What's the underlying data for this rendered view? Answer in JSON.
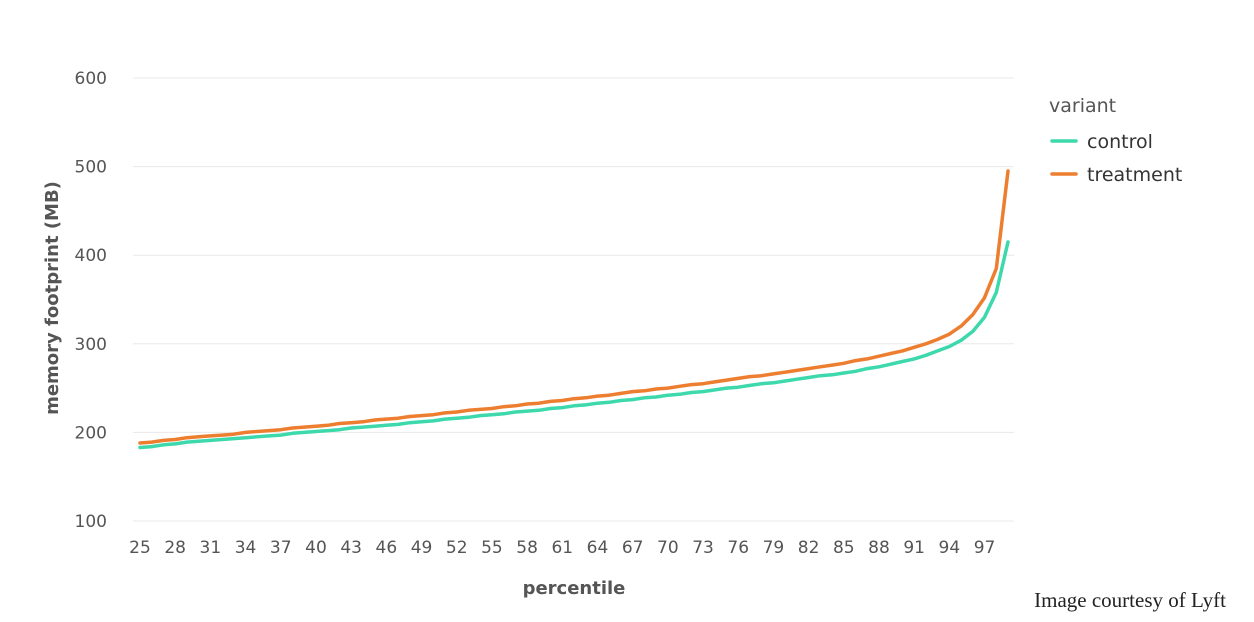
{
  "chart_data": {
    "type": "line",
    "title": "",
    "xlabel": "percentile",
    "ylabel": "memory footprint (MB)",
    "x": [
      25,
      26,
      27,
      28,
      29,
      30,
      31,
      32,
      33,
      34,
      35,
      36,
      37,
      38,
      39,
      40,
      41,
      42,
      43,
      44,
      45,
      46,
      47,
      48,
      49,
      50,
      51,
      52,
      53,
      54,
      55,
      56,
      57,
      58,
      59,
      60,
      61,
      62,
      63,
      64,
      65,
      66,
      67,
      68,
      69,
      70,
      71,
      72,
      73,
      74,
      75,
      76,
      77,
      78,
      79,
      80,
      81,
      82,
      83,
      84,
      85,
      86,
      87,
      88,
      89,
      90,
      91,
      92,
      93,
      94,
      95,
      96,
      97,
      98,
      99
    ],
    "x_ticks": [
      "25",
      "28",
      "31",
      "34",
      "37",
      "40",
      "43",
      "46",
      "49",
      "52",
      "55",
      "58",
      "61",
      "64",
      "67",
      "70",
      "73",
      "76",
      "79",
      "82",
      "85",
      "88",
      "91",
      "94",
      "97"
    ],
    "xlim": [
      25,
      99
    ],
    "ylim": [
      100,
      600
    ],
    "y_ticks": [
      "100",
      "200",
      "300",
      "400",
      "500",
      "600"
    ],
    "grid": true,
    "legend": {
      "title": "variant",
      "placement": "right"
    },
    "series": [
      {
        "name": "control",
        "color": "#3DD9AC",
        "values": [
          183,
          184,
          186,
          187,
          189,
          190,
          191,
          192,
          193,
          194,
          195,
          196,
          197,
          199,
          200,
          201,
          202,
          203,
          205,
          206,
          207,
          208,
          209,
          211,
          212,
          213,
          215,
          216,
          217,
          219,
          220,
          221,
          223,
          224,
          225,
          227,
          228,
          230,
          231,
          233,
          234,
          236,
          237,
          239,
          240,
          242,
          243,
          245,
          246,
          248,
          250,
          251,
          253,
          255,
          256,
          258,
          260,
          262,
          264,
          265,
          267,
          269,
          272,
          274,
          277,
          280,
          283,
          287,
          292,
          297,
          304,
          314,
          330,
          358,
          415
        ]
      },
      {
        "name": "treatment",
        "color": "#EE7E2F",
        "values": [
          188,
          189,
          191,
          192,
          194,
          195,
          196,
          197,
          198,
          200,
          201,
          202,
          203,
          205,
          206,
          207,
          208,
          210,
          211,
          212,
          214,
          215,
          216,
          218,
          219,
          220,
          222,
          223,
          225,
          226,
          227,
          229,
          230,
          232,
          233,
          235,
          236,
          238,
          239,
          241,
          242,
          244,
          246,
          247,
          249,
          250,
          252,
          254,
          255,
          257,
          259,
          261,
          263,
          264,
          266,
          268,
          270,
          272,
          274,
          276,
          278,
          281,
          283,
          286,
          289,
          292,
          296,
          300,
          305,
          311,
          320,
          333,
          352,
          385,
          495
        ]
      }
    ]
  },
  "credit": "Image courtesy of Lyft"
}
